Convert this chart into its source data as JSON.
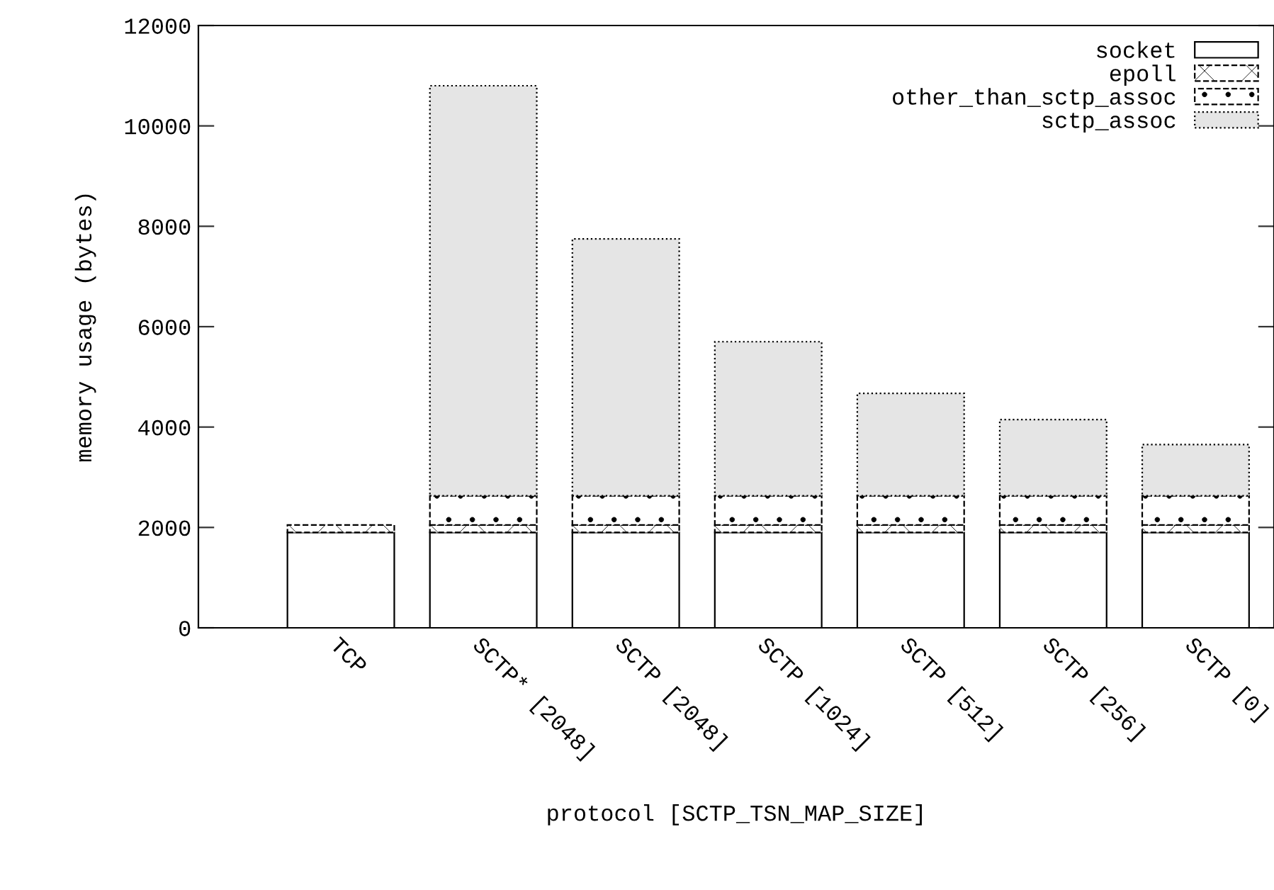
{
  "chart_data": {
    "type": "bar",
    "stacked": true,
    "xlabel": "protocol [SCTP_TSN_MAP_SIZE]",
    "ylabel": "memory usage (bytes)",
    "categories": [
      "TCP",
      "SCTP* [2048]",
      "SCTP [2048]",
      "SCTP [1024]",
      "SCTP [512]",
      "SCTP [256]",
      "SCTP [0]"
    ],
    "series": [
      {
        "name": "socket",
        "color": "#ffffff",
        "values": [
          1900,
          1900,
          1900,
          1900,
          1900,
          1900,
          1900
        ]
      },
      {
        "name": "epoll",
        "color": "#ffffff",
        "values": [
          150,
          150,
          150,
          150,
          150,
          150,
          150
        ]
      },
      {
        "name": "other_than_sctp_assoc",
        "color": "#ffffff",
        "values": [
          0,
          580,
          580,
          580,
          580,
          580,
          580
        ]
      },
      {
        "name": "sctp_assoc",
        "color": "#e5e5e5",
        "values": [
          0,
          8170,
          5120,
          3070,
          2040,
          1520,
          1020
        ]
      }
    ],
    "ylim": [
      0,
      12000
    ],
    "yticks": [
      0,
      2000,
      4000,
      6000,
      8000,
      10000,
      12000
    ],
    "grid": false,
    "legend": "top right"
  }
}
